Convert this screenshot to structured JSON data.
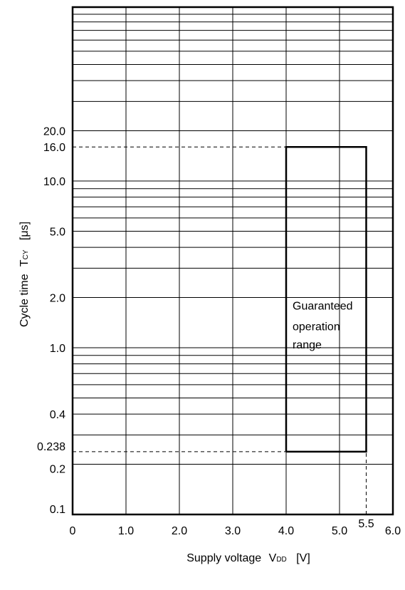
{
  "chart_data": {
    "type": "line",
    "title": "",
    "xlabel": "Supply voltage",
    "xlabel_symbol": "V",
    "xlabel_subscript": "DD",
    "xlabel_unit": "[V]",
    "ylabel": "Cycle time",
    "ylabel_symbol": "T",
    "ylabel_subscript": "CY",
    "ylabel_unit": "[μs]",
    "xlim": [
      0,
      6.0
    ],
    "ylim": [
      0.1,
      120
    ],
    "yscale": "log",
    "grid": true,
    "x_ticks": [
      {
        "value": 0,
        "label": "0"
      },
      {
        "value": 1.0,
        "label": "1.0"
      },
      {
        "value": 2.0,
        "label": "2.0"
      },
      {
        "value": 3.0,
        "label": "3.0"
      },
      {
        "value": 4.0,
        "label": "4.0"
      },
      {
        "value": 5.0,
        "label": "5.0"
      },
      {
        "value": 5.5,
        "label": "5.5"
      },
      {
        "value": 6.0,
        "label": "6.0"
      }
    ],
    "y_ticks": [
      {
        "value": 0.1,
        "label": "0.1"
      },
      {
        "value": 0.2,
        "label": "0.2"
      },
      {
        "value": 0.238,
        "label": "0.238"
      },
      {
        "value": 0.4,
        "label": "0.4"
      },
      {
        "value": 1.0,
        "label": "1.0"
      },
      {
        "value": 2.0,
        "label": "2.0"
      },
      {
        "value": 5.0,
        "label": "5.0"
      },
      {
        "value": 10.0,
        "label": "10.0"
      },
      {
        "value": 16.0,
        "label": "16.0"
      },
      {
        "value": 20.0,
        "label": "20.0"
      }
    ],
    "y_gridlines": [
      0.2,
      0.3,
      0.4,
      0.5,
      0.6,
      0.7,
      0.8,
      0.9,
      1,
      2,
      3,
      4,
      5,
      6,
      7,
      8,
      9,
      10,
      20,
      30,
      40,
      50,
      60,
      70,
      80,
      90,
      100
    ],
    "series": [
      {
        "name": "Guaranteed operation range",
        "shape": "rectangle",
        "x": [
          4.0,
          5.5,
          5.5,
          4.0,
          4.0
        ],
        "y": [
          0.238,
          0.238,
          16.0,
          16.0,
          0.238
        ]
      }
    ],
    "annotations": [
      {
        "text": "Guaranteed",
        "x": 4.0,
        "y": 1.8
      },
      {
        "text": "operation",
        "x": 4.0,
        "y": 1.35
      },
      {
        "text": "range",
        "x": 4.0,
        "y": 1.05
      }
    ],
    "reference_lines": [
      {
        "axis": "y",
        "value": 16.0,
        "from": 0,
        "to": 4.0,
        "style": "dashed"
      },
      {
        "axis": "y",
        "value": 0.238,
        "from": 0,
        "to": 5.5,
        "style": "dashed"
      },
      {
        "axis": "x",
        "value": 5.5,
        "from": 0.1,
        "to": 0.238,
        "style": "dashed"
      }
    ]
  }
}
